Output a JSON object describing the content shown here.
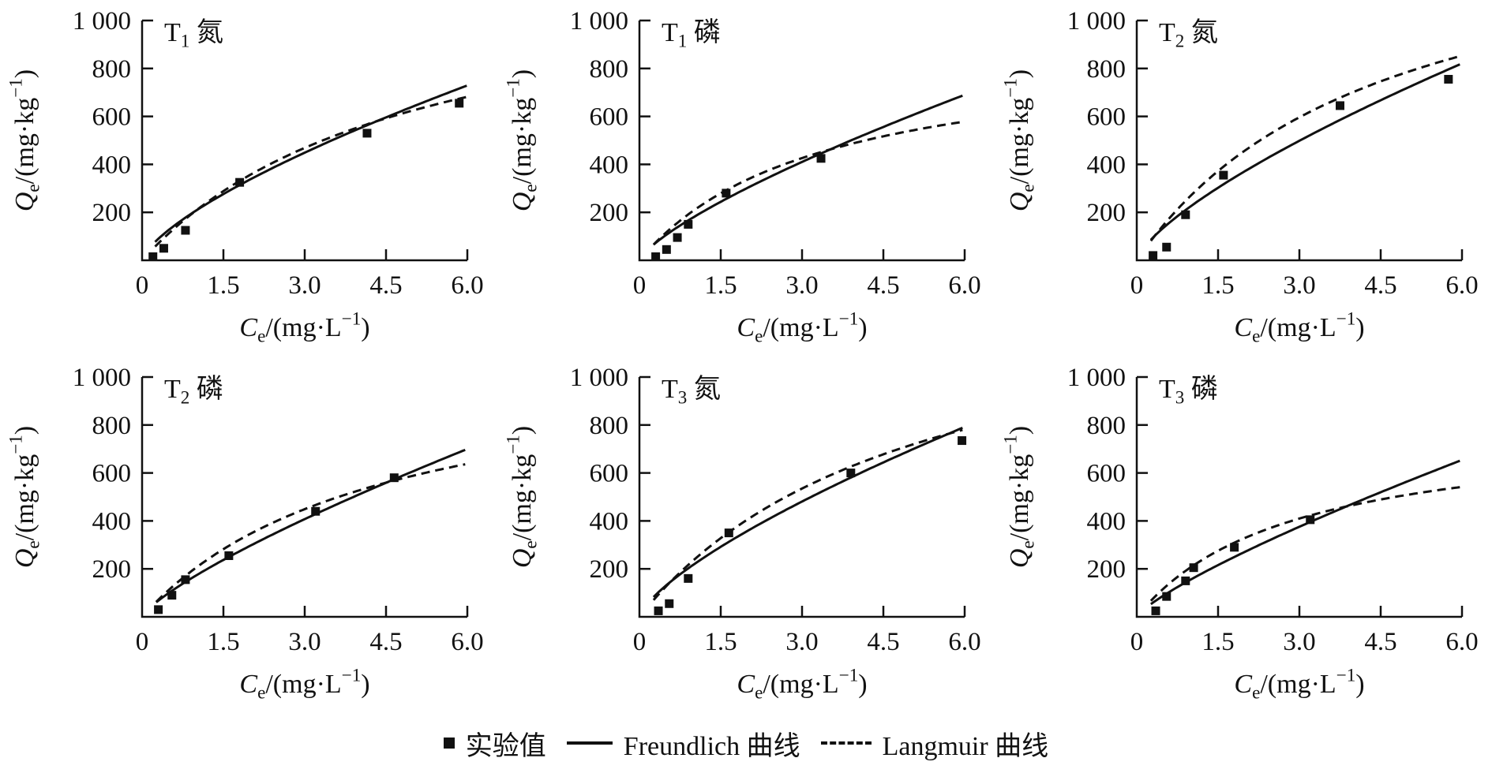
{
  "figure": {
    "background": "#ffffff",
    "ink_color": "#111111",
    "axes": {
      "x_label_text": "Ce/(mg·L−1)",
      "y_label_text": "Qe/(mg·kg−1)",
      "x_label_parts": [
        {
          "t": "C",
          "italic": true
        },
        {
          "t": "e",
          "script": "sub"
        },
        {
          "t": "/(mg·L"
        },
        {
          "t": "−1",
          "script": "sup"
        },
        {
          "t": ")"
        }
      ],
      "y_label_parts": [
        {
          "t": "Q",
          "italic": true
        },
        {
          "t": "e",
          "script": "sub"
        },
        {
          "t": "/(mg·kg"
        },
        {
          "t": "−1",
          "script": "sup"
        },
        {
          "t": ")"
        }
      ],
      "xlim": [
        0,
        6
      ],
      "ylim": [
        0,
        1000
      ],
      "xticks": [
        {
          "v": 0,
          "label": "0"
        },
        {
          "v": 1.5,
          "label": "1.5"
        },
        {
          "v": 3.0,
          "label": "3.0"
        },
        {
          "v": 4.5,
          "label": "4.5"
        },
        {
          "v": 6.0,
          "label": "6.0"
        }
      ],
      "yticks": [
        {
          "v": 200,
          "label": "200"
        },
        {
          "v": 400,
          "label": "400"
        },
        {
          "v": 600,
          "label": "600"
        },
        {
          "v": 800,
          "label": "800"
        },
        {
          "v": 1000,
          "label": "1 000"
        }
      ],
      "grid": false
    },
    "legend": {
      "position": "bottom-center",
      "items": [
        {
          "marker": "filled-square",
          "label": "实验值"
        },
        {
          "marker": "solid-line",
          "label": "Freundlich 曲线"
        },
        {
          "marker": "dashed-line",
          "label": "Langmuir 曲线"
        }
      ]
    }
  },
  "chart_data": [
    {
      "type": "scatter",
      "title_text": "T1 氮",
      "title_parts": [
        {
          "t": "T"
        },
        {
          "t": "1",
          "script": "sub"
        },
        {
          "t": "  氮"
        }
      ],
      "xlabel": "Ce/(mg·L−1)",
      "ylabel": "Qe/(mg·kg−1)",
      "xlim": [
        0,
        6
      ],
      "ylim": [
        0,
        1000
      ],
      "series": [
        {
          "name": "实验值",
          "kind": "points",
          "points": [
            [
              0.2,
              15
            ],
            [
              0.4,
              50
            ],
            [
              0.8,
              125
            ],
            [
              1.8,
              325
            ],
            [
              4.15,
              530
            ],
            [
              5.85,
              655
            ]
          ]
        },
        {
          "name": "Freundlich 曲线",
          "kind": "curve",
          "model": "freundlich",
          "params": {
            "KF": 208,
            "inv_n": 0.7
          },
          "curve_start": 0.24,
          "end_value_at_6": 729
        },
        {
          "name": "Langmuir 曲线",
          "kind": "curve",
          "model": "langmuir",
          "params": {
            "Qm": 1250,
            "KL": 0.2
          },
          "curve_start": 0.24,
          "end_value_at_6": 682
        }
      ]
    },
    {
      "type": "scatter",
      "title_text": "T1 磷",
      "title_parts": [
        {
          "t": "T"
        },
        {
          "t": "1",
          "script": "sub"
        },
        {
          "t": "  磷"
        }
      ],
      "xlabel": "Ce/(mg·L−1)",
      "ylabel": "Qe/(mg·kg−1)",
      "xlim": [
        0,
        6
      ],
      "ylim": [
        0,
        1000
      ],
      "series": [
        {
          "name": "实验值",
          "kind": "points",
          "points": [
            [
              0.3,
              15
            ],
            [
              0.5,
              45
            ],
            [
              0.7,
              95
            ],
            [
              0.9,
              150
            ],
            [
              1.6,
              280
            ],
            [
              3.35,
              425
            ]
          ]
        },
        {
          "name": "Freundlich 曲线",
          "kind": "curve",
          "model": "freundlich",
          "params": {
            "KF": 180,
            "inv_n": 0.75
          },
          "curve_start": 0.26,
          "end_value_at_6": 690
        },
        {
          "name": "Langmuir 曲线",
          "kind": "curve",
          "model": "langmuir",
          "params": {
            "Qm": 900,
            "KL": 0.3
          },
          "curve_start": 0.26,
          "end_value_at_6": 579
        }
      ]
    },
    {
      "type": "scatter",
      "title_text": "T2 氮",
      "title_parts": [
        {
          "t": "T"
        },
        {
          "t": "2",
          "script": "sub"
        },
        {
          "t": "  氮"
        }
      ],
      "xlabel": "Ce/(mg·L−1)",
      "ylabel": "Qe/(mg·kg−1)",
      "xlim": [
        0,
        6
      ],
      "ylim": [
        0,
        1000
      ],
      "series": [
        {
          "name": "实验值",
          "kind": "points",
          "points": [
            [
              0.3,
              20
            ],
            [
              0.55,
              55
            ],
            [
              0.9,
              190
            ],
            [
              1.6,
              355
            ],
            [
              3.75,
              645
            ],
            [
              5.75,
              755
            ]
          ]
        },
        {
          "name": "Freundlich 曲线",
          "kind": "curve",
          "model": "freundlich",
          "params": {
            "KF": 226,
            "inv_n": 0.72
          },
          "curve_start": 0.26,
          "end_value_at_6": 821
        },
        {
          "name": "Langmuir 曲线",
          "kind": "curve",
          "model": "langmuir",
          "params": {
            "Qm": 1500,
            "KL": 0.22
          },
          "curve_start": 0.26,
          "end_value_at_6": 853
        }
      ]
    },
    {
      "type": "scatter",
      "title_text": "T2 磷",
      "title_parts": [
        {
          "t": "T"
        },
        {
          "t": "2",
          "script": "sub"
        },
        {
          "t": "  磷"
        }
      ],
      "xlabel": "Ce/(mg·L−1)",
      "ylabel": "Qe/(mg·kg−1)",
      "xlim": [
        0,
        6
      ],
      "ylim": [
        0,
        1000
      ],
      "series": [
        {
          "name": "实验值",
          "kind": "points",
          "points": [
            [
              0.3,
              30
            ],
            [
              0.55,
              90
            ],
            [
              0.8,
              155
            ],
            [
              1.6,
              255
            ],
            [
              3.2,
              440
            ],
            [
              4.65,
              580
            ]
          ]
        },
        {
          "name": "Freundlich 曲线",
          "kind": "curve",
          "model": "freundlich",
          "params": {
            "KF": 173,
            "inv_n": 0.78
          },
          "curve_start": 0.26,
          "end_value_at_6": 700
        },
        {
          "name": "Langmuir 曲线",
          "kind": "curve",
          "model": "langmuir",
          "params": {
            "Qm": 1100,
            "KL": 0.23
          },
          "curve_start": 0.26,
          "end_value_at_6": 638
        }
      ]
    },
    {
      "type": "scatter",
      "title_text": "T3 氮",
      "title_parts": [
        {
          "t": "T"
        },
        {
          "t": "3",
          "script": "sub"
        },
        {
          "t": "  氮"
        }
      ],
      "xlabel": "Ce/(mg·L−1)",
      "ylabel": "Qe/(mg·kg−1)",
      "xlim": [
        0,
        6
      ],
      "ylim": [
        0,
        1000
      ],
      "series": [
        {
          "name": "实验值",
          "kind": "points",
          "points": [
            [
              0.35,
              25
            ],
            [
              0.55,
              55
            ],
            [
              0.9,
              160
            ],
            [
              1.65,
              350
            ],
            [
              3.9,
              600
            ],
            [
              5.95,
              735
            ]
          ]
        },
        {
          "name": "Freundlich 曲线",
          "kind": "curve",
          "model": "freundlich",
          "params": {
            "KF": 218,
            "inv_n": 0.72
          },
          "curve_start": 0.26,
          "end_value_at_6": 792
        },
        {
          "name": "Langmuir 曲线",
          "kind": "curve",
          "model": "langmuir",
          "params": {
            "Qm": 1450,
            "KL": 0.195
          },
          "curve_start": 0.26,
          "end_value_at_6": 782
        }
      ]
    },
    {
      "type": "scatter",
      "title_text": "T3 磷",
      "title_parts": [
        {
          "t": "T"
        },
        {
          "t": "3",
          "script": "sub"
        },
        {
          "t": "  磷"
        }
      ],
      "xlabel": "Ce/(mg·L−1)",
      "ylabel": "Qe/(mg·kg−1)",
      "xlim": [
        0,
        6
      ],
      "ylim": [
        0,
        1000
      ],
      "series": [
        {
          "name": "实验值",
          "kind": "points",
          "points": [
            [
              0.35,
              25
            ],
            [
              0.55,
              85
            ],
            [
              0.9,
              150
            ],
            [
              1.05,
              205
            ],
            [
              1.8,
              290
            ],
            [
              3.2,
              405
            ]
          ]
        },
        {
          "name": "Freundlich 曲线",
          "kind": "curve",
          "model": "freundlich",
          "params": {
            "KF": 156,
            "inv_n": 0.8
          },
          "curve_start": 0.26,
          "end_value_at_6": 654
        },
        {
          "name": "Langmuir 曲线",
          "kind": "curve",
          "model": "langmuir",
          "params": {
            "Qm": 800,
            "KL": 0.35
          },
          "curve_start": 0.26,
          "end_value_at_6": 542
        }
      ]
    }
  ]
}
